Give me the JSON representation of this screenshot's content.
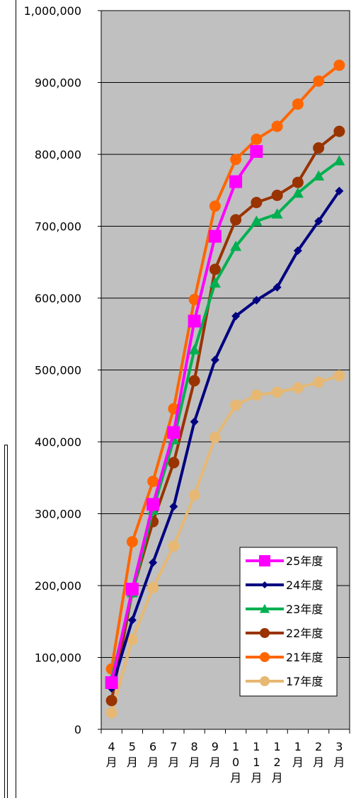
{
  "chart_data": {
    "type": "line",
    "title": "",
    "xlabel": "",
    "ylabel": "",
    "categories": [
      "4月",
      "5月",
      "6月",
      "7月",
      "8月",
      "9月",
      "10月",
      "11月",
      "12月",
      "1月",
      "2月",
      "3月"
    ],
    "x_tick_lines": [
      [
        "4",
        "月"
      ],
      [
        "5",
        "月"
      ],
      [
        "6",
        "月"
      ],
      [
        "7",
        "月"
      ],
      [
        "8",
        "月"
      ],
      [
        "9",
        "月"
      ],
      [
        "1",
        "0",
        "月"
      ],
      [
        "1",
        "1",
        "月"
      ],
      [
        "1",
        "2",
        "月"
      ],
      [
        "1",
        "月"
      ],
      [
        "2",
        "月"
      ],
      [
        "3",
        "月"
      ]
    ],
    "ylim": [
      0,
      1000000
    ],
    "yticks": [
      0,
      100000,
      200000,
      300000,
      400000,
      500000,
      600000,
      700000,
      800000,
      900000,
      1000000
    ],
    "ytick_labels": [
      "0",
      "100,000",
      "200,000",
      "300,000",
      "400,000",
      "500,000",
      "600,000",
      "700,000",
      "800,000",
      "900,000",
      "1,000,000"
    ],
    "grid": true,
    "plot_background": "#c0c0c0",
    "legend_position": "bottom-right",
    "series": [
      {
        "name": "25年度",
        "color": "#ff00ff",
        "marker": "square",
        "values": [
          65000,
          195000,
          313000,
          413000,
          568000,
          686000,
          762000,
          804000,
          null,
          null,
          null,
          null
        ]
      },
      {
        "name": "24年度",
        "color": "#000080",
        "marker": "diamond",
        "values": [
          57000,
          152000,
          232000,
          310000,
          428000,
          514000,
          575000,
          597000,
          615000,
          666000,
          707000,
          749000
        ]
      },
      {
        "name": "23年度",
        "color": "#00b050",
        "marker": "triangle",
        "values": [
          70000,
          190000,
          305000,
          403000,
          528000,
          621000,
          672000,
          707000,
          717000,
          746000,
          770000,
          791000
        ]
      },
      {
        "name": "22年度",
        "color": "#993300",
        "marker": "circle",
        "values": [
          40000,
          191000,
          289000,
          371000,
          485000,
          640000,
          709000,
          733000,
          743000,
          761000,
          809000,
          832000
        ]
      },
      {
        "name": "21年度",
        "color": "#ff6600",
        "marker": "circle",
        "values": [
          84000,
          261000,
          345000,
          446000,
          598000,
          728000,
          793000,
          821000,
          839000,
          870000,
          902000,
          924000
        ]
      },
      {
        "name": "17年度",
        "color": "#e6b873",
        "marker": "circle",
        "values": [
          23000,
          125000,
          197000,
          255000,
          326000,
          406000,
          451000,
          465000,
          469000,
          475000,
          483000,
          492000
        ]
      }
    ]
  }
}
